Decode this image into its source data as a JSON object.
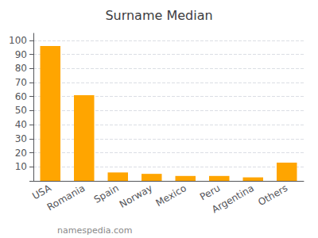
{
  "chart_data": {
    "type": "bar",
    "title": "Surname Median",
    "categories": [
      "USA",
      "Romania",
      "Spain",
      "Norway",
      "Mexico",
      "Peru",
      "Argentina",
      "Others"
    ],
    "values": [
      96,
      61,
      6,
      5,
      3.5,
      3.5,
      2.5,
      13
    ],
    "color": "#FFA500",
    "ylim": [
      0,
      105
    ],
    "yticks": [
      {
        "value": 0,
        "label": ""
      },
      10,
      20,
      30,
      40,
      50,
      60,
      70,
      80,
      90,
      100
    ],
    "grid": true,
    "annotations": [
      "namespedia.com"
    ]
  }
}
